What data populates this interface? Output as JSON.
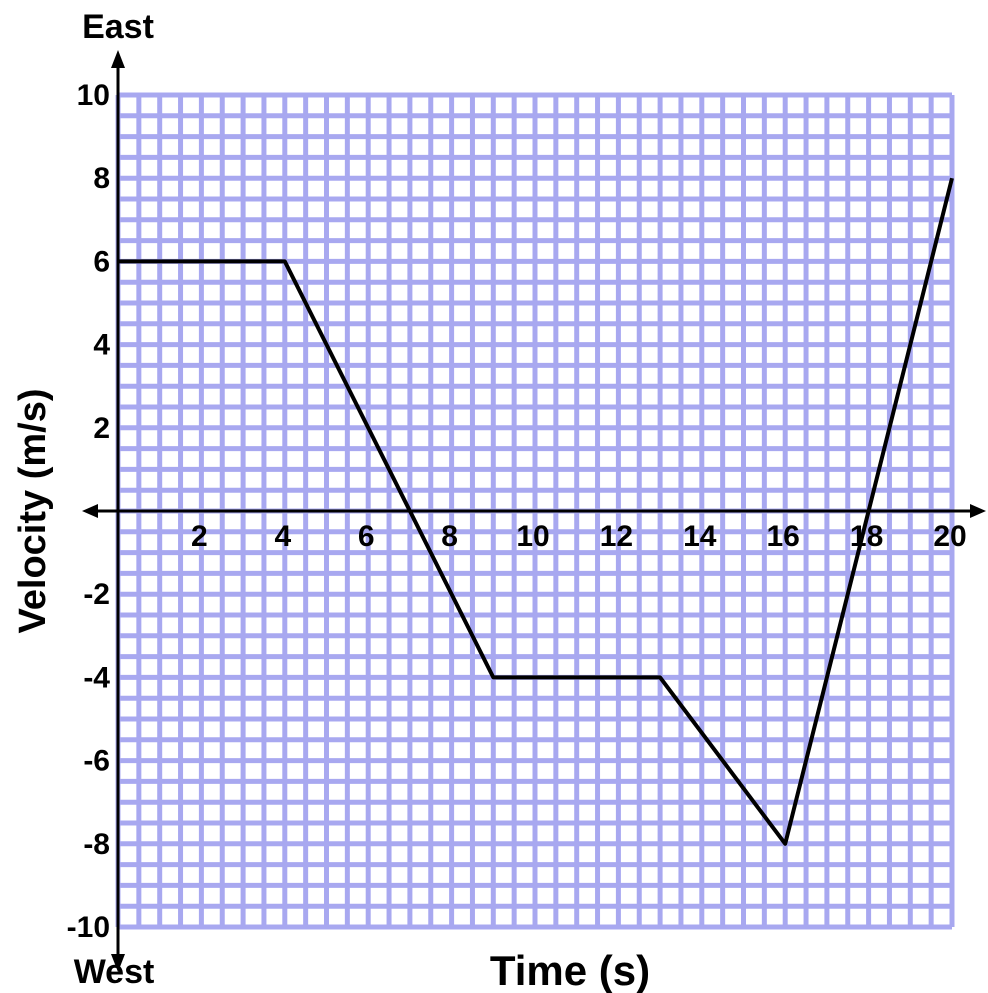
{
  "chart_data": {
    "type": "line",
    "xlabel": "Time (s)",
    "ylabel": "Velocity (m/s)",
    "top_label": "East",
    "bottom_label": "West",
    "xlim": [
      0,
      20
    ],
    "ylim": [
      -10,
      10
    ],
    "grid": true,
    "x_minor_step": 1,
    "y_minor_step": 1,
    "x_ticks": [
      2,
      4,
      6,
      8,
      10,
      12,
      14,
      16,
      18,
      20
    ],
    "y_ticks": [
      10,
      8,
      6,
      4,
      2,
      -2,
      -4,
      -6,
      -8,
      -10
    ],
    "series": [
      {
        "x": [
          0,
          4,
          7,
          9,
          13,
          16,
          18,
          20
        ],
        "y": [
          6,
          6,
          0,
          -4,
          -4,
          -8,
          0,
          8
        ]
      }
    ],
    "colors": {
      "grid": "#a8a8f0",
      "line": "#000000",
      "axis": "#000000"
    }
  }
}
